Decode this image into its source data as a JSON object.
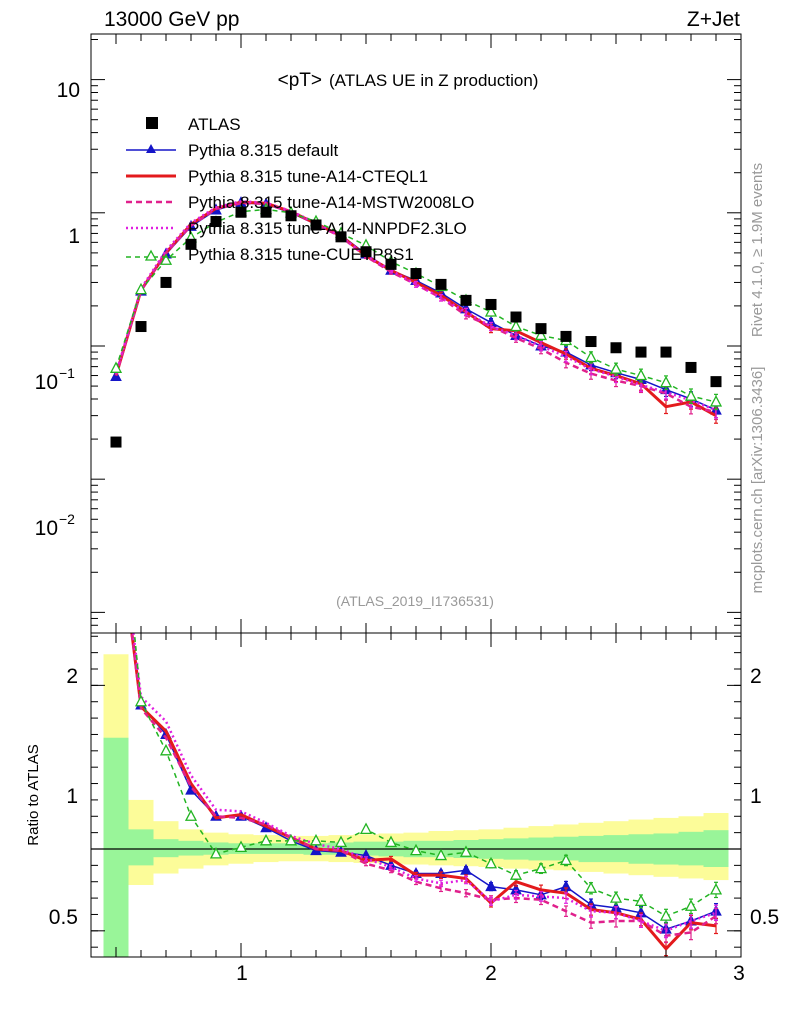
{
  "header": {
    "energy_label": "13000 GeV pp",
    "process_label": "Z+Jet"
  },
  "side": {
    "rivet_label": "Rivet 4.1.0, ≥ 1.9M events",
    "mcplots_label": "mcplots.cern.ch [arXiv:1306.3436]"
  },
  "colors": {
    "data": "#000000",
    "default": "#1515c8",
    "cteql1": "#e31a1c",
    "mstw": "#e0208c",
    "nnpdf": "#e020e0",
    "cuetp8s1": "#22b422",
    "band_inner": "#99f599",
    "band_outer": "#fcfc99"
  },
  "chart_data": [
    {
      "type": "line",
      "panel": "main",
      "title_main": "<pT>",
      "title_sub": "(ATLAS UE in Z production)",
      "analysis_label": "(ATLAS_2019_I1736531)",
      "yscale": "log",
      "xlim": [
        0.4,
        3.0
      ],
      "ylim": [
        0.0007,
        22
      ],
      "ytick_labels": {
        "ten": "10",
        "one": "1",
        "tenth_base": "10",
        "tenth_exp": "−1",
        "hundredth_base": "10",
        "hundredth_exp": "−2"
      },
      "legend_position": "top-left",
      "x": [
        0.5,
        0.6,
        0.7,
        0.8,
        0.9,
        1.0,
        1.1,
        1.2,
        1.3,
        1.4,
        1.5,
        1.6,
        1.7,
        1.8,
        1.9,
        2.0,
        2.1,
        2.2,
        2.3,
        2.4,
        2.5,
        2.6,
        2.7,
        2.8,
        2.9
      ],
      "series": [
        {
          "name": "ATLAS",
          "key": "data",
          "style": "square",
          "values": [
            0.019,
            0.14,
            0.3,
            0.58,
            0.86,
            1.01,
            1.01,
            0.95,
            0.81,
            0.66,
            0.51,
            0.41,
            0.35,
            0.29,
            0.22,
            0.205,
            0.165,
            0.135,
            0.118,
            0.108,
            0.097,
            0.09,
            0.09,
            0.069,
            0.054
          ]
        },
        {
          "name": "Pythia 8.315 default",
          "key": "default",
          "style": "solid-tri",
          "values": [
            0.059,
            0.258,
            0.49,
            0.79,
            1.05,
            1.19,
            1.16,
            1.0,
            0.82,
            0.68,
            0.49,
            0.37,
            0.31,
            0.25,
            0.19,
            0.15,
            0.12,
            0.1,
            0.09,
            0.072,
            0.063,
            0.056,
            0.047,
            0.04,
            0.033
          ]
        },
        {
          "name": "Pythia 8.315 tune-A14-CTEQL1",
          "key": "cteql1",
          "style": "solid",
          "values": [
            0.06,
            0.262,
            0.5,
            0.82,
            1.08,
            1.2,
            1.18,
            1.02,
            0.83,
            0.67,
            0.475,
            0.37,
            0.3,
            0.24,
            0.18,
            0.135,
            0.13,
            0.106,
            0.087,
            0.068,
            0.06,
            0.052,
            0.035,
            0.038,
            0.03
          ]
        },
        {
          "name": "Pythia 8.315 tune-A14-MSTW2008LO",
          "key": "mstw",
          "style": "dashed",
          "values": [
            0.06,
            0.26,
            0.5,
            0.8,
            1.07,
            1.18,
            1.17,
            1.02,
            0.82,
            0.66,
            0.47,
            0.36,
            0.29,
            0.23,
            0.17,
            0.14,
            0.115,
            0.095,
            0.075,
            0.062,
            0.055,
            0.05,
            0.044,
            0.035,
            0.032
          ]
        },
        {
          "name": "Pythia 8.315 tune-A14-NNPDF2.3LO",
          "key": "nnpdf",
          "style": "dotted",
          "values": [
            0.062,
            0.27,
            0.52,
            0.84,
            1.1,
            1.22,
            1.19,
            1.03,
            0.84,
            0.66,
            0.48,
            0.37,
            0.29,
            0.23,
            0.18,
            0.14,
            0.12,
            0.1,
            0.083,
            0.067,
            0.059,
            0.051,
            0.045,
            0.039,
            0.033
          ]
        },
        {
          "name": "Pythia 8.315 tune-CUETP8S1",
          "key": "cuetp8s1",
          "style": "dashed-tri",
          "values": [
            0.068,
            0.265,
            0.44,
            0.65,
            0.85,
            1.02,
            1.06,
            1.0,
            0.86,
            0.7,
            0.57,
            0.43,
            0.35,
            0.28,
            0.22,
            0.18,
            0.14,
            0.12,
            0.11,
            0.082,
            0.067,
            0.06,
            0.053,
            0.042,
            0.038
          ]
        }
      ]
    },
    {
      "type": "line",
      "panel": "ratio",
      "ylabel": "Ratio to ATLAS",
      "xlim": [
        0.4,
        3.0
      ],
      "ylim": [
        0.34,
        2.32
      ],
      "x": [
        0.5,
        0.6,
        0.7,
        0.8,
        0.9,
        1.0,
        1.1,
        1.2,
        1.3,
        1.4,
        1.5,
        1.6,
        1.7,
        1.8,
        1.9,
        2.0,
        2.1,
        2.2,
        2.3,
        2.4,
        2.5,
        2.6,
        2.7,
        2.8,
        2.9
      ],
      "x_tick_labels": [
        "1",
        "2",
        "3"
      ],
      "y_tick_labels": [
        "0.5",
        "1",
        "2"
      ],
      "band_edges": [
        0.45,
        0.55,
        0.65,
        0.75,
        0.85,
        0.95,
        1.05,
        1.15,
        1.25,
        1.35,
        1.45,
        1.55,
        1.65,
        1.75,
        1.85,
        1.95,
        2.05,
        2.15,
        2.25,
        2.35,
        2.45,
        2.55,
        2.65,
        2.75,
        2.85,
        2.95
      ],
      "band_inner": [
        [
          0.3,
          1.68
        ],
        [
          0.9,
          1.12
        ],
        [
          0.95,
          1.06
        ],
        [
          0.96,
          1.05
        ],
        [
          0.965,
          1.04
        ],
        [
          0.97,
          1.035
        ],
        [
          0.97,
          1.035
        ],
        [
          0.97,
          1.035
        ],
        [
          0.965,
          1.035
        ],
        [
          0.965,
          1.04
        ],
        [
          0.96,
          1.045
        ],
        [
          0.955,
          1.045
        ],
        [
          0.95,
          1.05
        ],
        [
          0.95,
          1.05
        ],
        [
          0.945,
          1.055
        ],
        [
          0.94,
          1.06
        ],
        [
          0.935,
          1.065
        ],
        [
          0.93,
          1.07
        ],
        [
          0.93,
          1.075
        ],
        [
          0.92,
          1.08
        ],
        [
          0.92,
          1.085
        ],
        [
          0.91,
          1.09
        ],
        [
          0.905,
          1.095
        ],
        [
          0.9,
          1.105
        ],
        [
          0.89,
          1.115
        ]
      ],
      "band_outer": [
        [
          0.3,
          2.19
        ],
        [
          0.78,
          1.3
        ],
        [
          0.85,
          1.17
        ],
        [
          0.88,
          1.12
        ],
        [
          0.9,
          1.1
        ],
        [
          0.91,
          1.09
        ],
        [
          0.92,
          1.085
        ],
        [
          0.925,
          1.08
        ],
        [
          0.925,
          1.08
        ],
        [
          0.92,
          1.085
        ],
        [
          0.915,
          1.09
        ],
        [
          0.91,
          1.095
        ],
        [
          0.905,
          1.1
        ],
        [
          0.9,
          1.11
        ],
        [
          0.895,
          1.115
        ],
        [
          0.89,
          1.12
        ],
        [
          0.88,
          1.13
        ],
        [
          0.875,
          1.14
        ],
        [
          0.87,
          1.15
        ],
        [
          0.86,
          1.16
        ],
        [
          0.85,
          1.17
        ],
        [
          0.84,
          1.18
        ],
        [
          0.83,
          1.19
        ],
        [
          0.82,
          1.2
        ],
        [
          0.81,
          1.22
        ]
      ],
      "series": [
        {
          "name": "Pythia 8.315 default",
          "key": "default",
          "style": "solid-tri",
          "values": [
            3.1,
            1.88,
            1.7,
            1.36,
            1.2,
            1.2,
            1.13,
            1.05,
            0.99,
            0.98,
            0.96,
            0.9,
            0.85,
            0.85,
            0.87,
            0.77,
            0.75,
            0.72,
            0.77,
            0.66,
            0.64,
            0.61,
            0.51,
            0.56,
            0.62
          ]
        },
        {
          "name": "Pythia 8.315 tune-A14-CTEQL1",
          "key": "cteql1",
          "style": "solid",
          "values": [
            3.1,
            1.87,
            1.72,
            1.4,
            1.19,
            1.21,
            1.14,
            1.07,
            1.0,
            0.99,
            0.93,
            0.94,
            0.84,
            0.84,
            0.82,
            0.67,
            0.8,
            0.75,
            0.73,
            0.63,
            0.61,
            0.57,
            0.39,
            0.55,
            0.53
          ]
        },
        {
          "name": "Pythia 8.315 tune-A14-MSTW2008LO",
          "key": "mstw",
          "style": "dashed",
          "values": [
            3.1,
            1.86,
            1.68,
            1.38,
            1.2,
            1.19,
            1.15,
            1.07,
            1.0,
            0.99,
            0.91,
            0.87,
            0.8,
            0.76,
            0.73,
            0.69,
            0.7,
            0.69,
            0.62,
            0.55,
            0.56,
            0.56,
            0.47,
            0.49,
            0.59
          ]
        },
        {
          "name": "Pythia 8.315 tune-A14-NNPDF2.3LO",
          "key": "nnpdf",
          "style": "dotted",
          "values": [
            3.2,
            1.93,
            1.78,
            1.45,
            1.24,
            1.23,
            1.16,
            1.08,
            1.03,
            1.0,
            0.94,
            0.89,
            0.82,
            0.79,
            0.81,
            0.68,
            0.72,
            0.71,
            0.7,
            0.62,
            0.61,
            0.56,
            0.5,
            0.56,
            0.61
          ]
        },
        {
          "name": "Pythia 8.315 tune-CUETP8S1",
          "key": "cuetp8s1",
          "style": "dashed-tri",
          "values": [
            3.5,
            1.9,
            1.6,
            1.2,
            0.97,
            1.01,
            1.05,
            1.05,
            1.05,
            1.04,
            1.12,
            1.04,
            0.99,
            0.96,
            0.98,
            0.91,
            0.84,
            0.88,
            0.93,
            0.76,
            0.7,
            0.68,
            0.59,
            0.65,
            0.75
          ]
        }
      ]
    }
  ]
}
